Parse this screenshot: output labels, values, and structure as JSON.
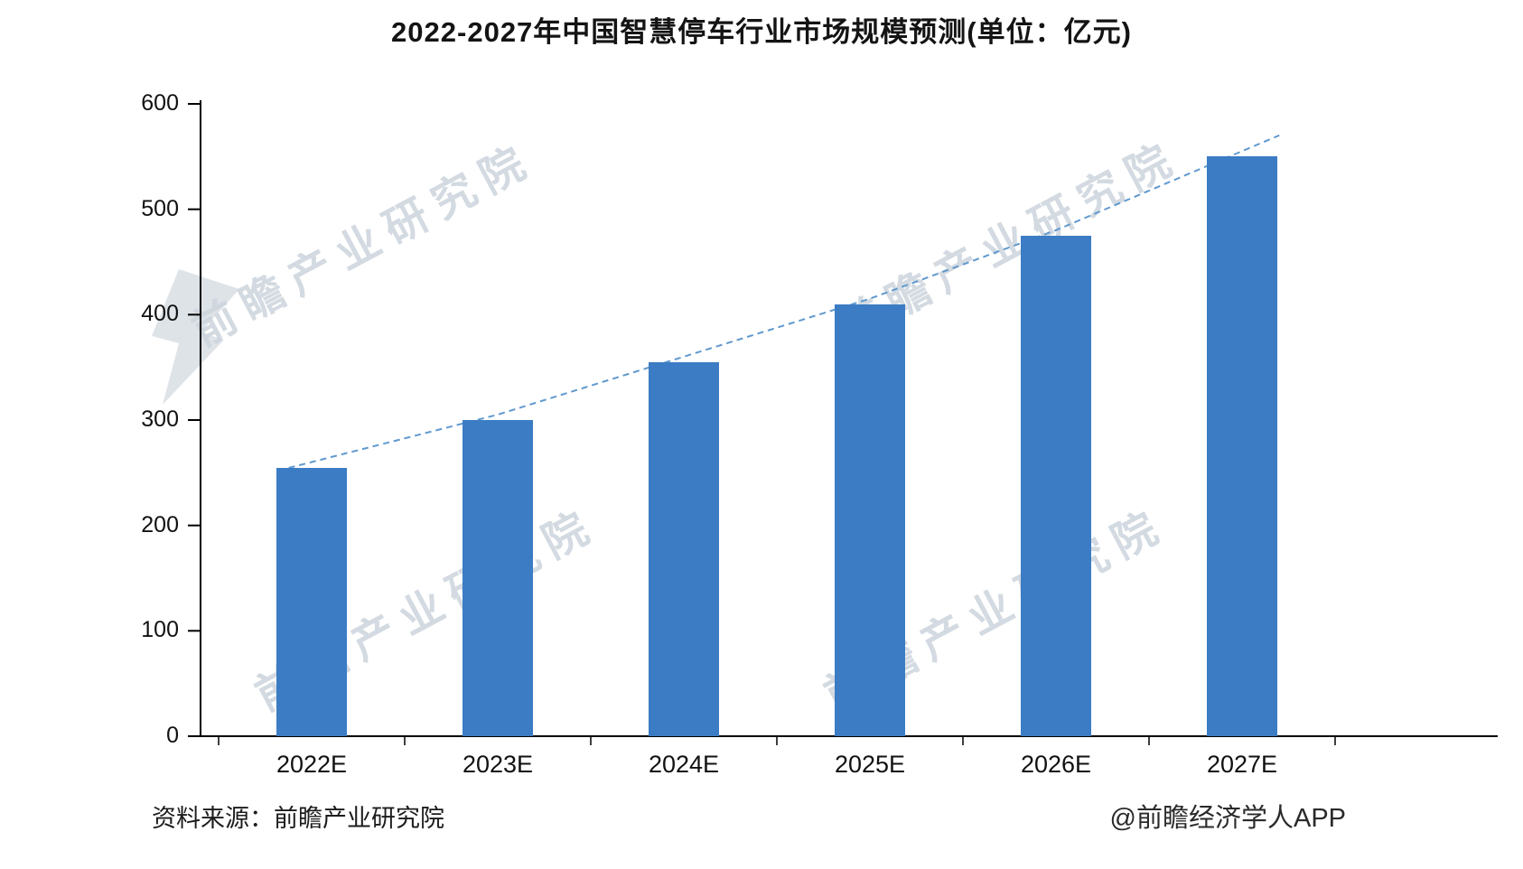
{
  "title": "2022-2027年中国智慧停车行业市场规模预测(单位：亿元)",
  "chart_data": {
    "type": "bar",
    "title": "2022-2027年中国智慧停车行业市场规模预测(单位：亿元)",
    "unit": "亿元",
    "categories": [
      "2022E",
      "2023E",
      "2024E",
      "2025E",
      "2026E",
      "2027E"
    ],
    "values": [
      255,
      300,
      355,
      410,
      475,
      550
    ],
    "series": [
      {
        "name": "市场规模(亿元)",
        "type": "bar",
        "values": [
          255,
          300,
          355,
          410,
          475,
          550
        ]
      },
      {
        "name": "趋势线",
        "type": "line",
        "style": "dashed",
        "values": [
          255,
          300,
          355,
          410,
          475,
          550
        ]
      }
    ],
    "xlabel": "",
    "ylabel": "",
    "ylim": [
      0,
      600
    ],
    "y_ticks": [
      0,
      100,
      200,
      300,
      400,
      500,
      600
    ],
    "grid": false,
    "legend_position": "none",
    "bar_color": "#3b7cc4",
    "trend_color": "#6099cf",
    "axis_color": "#000000"
  },
  "watermark": {
    "text": "前瞻产业研究院"
  },
  "footer": {
    "source": "资料来源：前瞻产业研究院",
    "credit": "@前瞻经济学人APP"
  }
}
